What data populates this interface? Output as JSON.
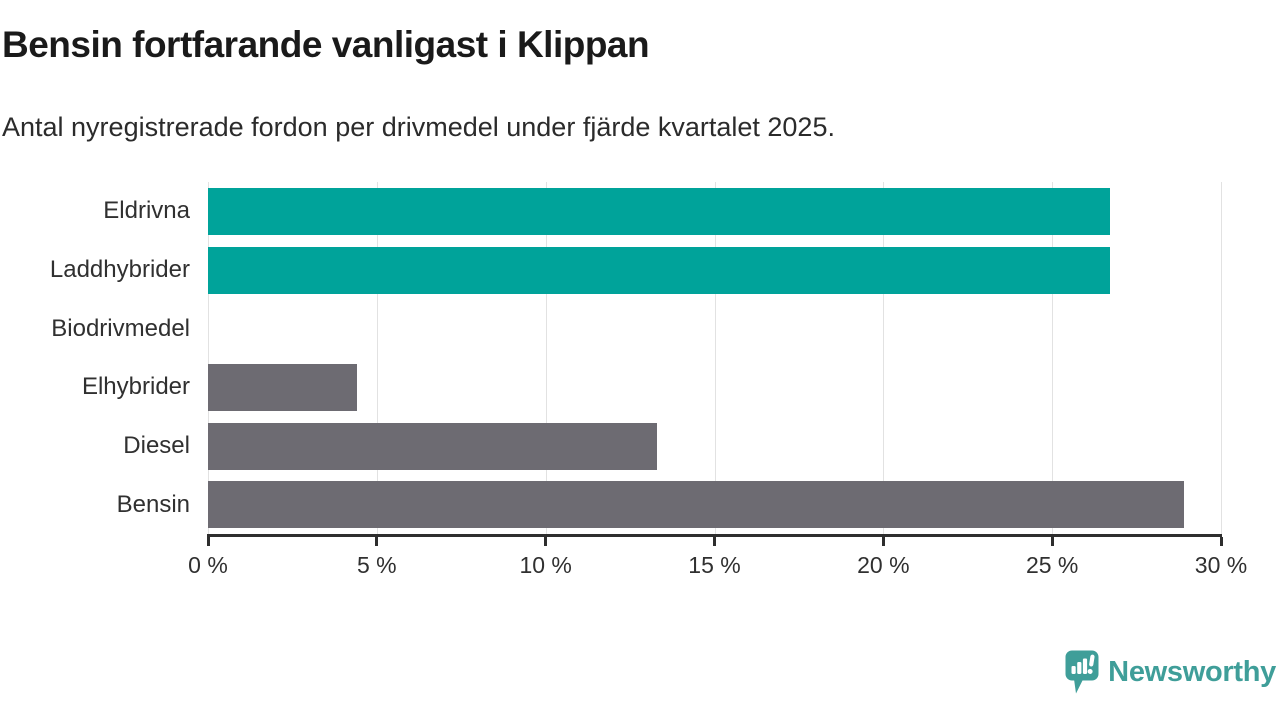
{
  "title": "Bensin fortfarande vanligast i Klippan",
  "subtitle": "Antal nyregistrerade fordon per drivmedel under fjärde kvartalet 2025.",
  "footer": {
    "brand": "Newsworthy",
    "logo_icon": "speech-bubble-bar-chart-exclamation"
  },
  "colors": {
    "bar_teal": "#00a39a",
    "bar_gray": "#6d6b72",
    "logo_teal": "#3f9e99",
    "axis": "#2e2e2e",
    "gridline": "#e2e2e2",
    "text": "#303030",
    "title_text": "#1a1a1a"
  },
  "chart_data": {
    "type": "bar",
    "orientation": "horizontal",
    "title": "Bensin fortfarande vanligast i Klippan",
    "subtitle": "Antal nyregistrerade fordon per drivmedel under fjärde kvartalet 2025.",
    "categories": [
      "Eldrivna",
      "Laddhybrider",
      "Biodrivmedel",
      "Elhybrider",
      "Diesel",
      "Bensin"
    ],
    "values": [
      26.7,
      26.7,
      0,
      4.4,
      13.3,
      28.9
    ],
    "bar_colors": [
      "#00a39a",
      "#00a39a",
      "#00a39a",
      "#6d6b72",
      "#6d6b72",
      "#6d6b72"
    ],
    "xlabel": "",
    "ylabel": "",
    "xlim": [
      0,
      30
    ],
    "x_ticks": [
      0,
      5,
      10,
      15,
      20,
      25,
      30
    ],
    "x_tick_labels": [
      "0 %",
      "5 %",
      "10 %",
      "15 %",
      "20 %",
      "25 %",
      "30 %"
    ],
    "grid": "vertical-only",
    "legend": false,
    "unit": "percent"
  }
}
